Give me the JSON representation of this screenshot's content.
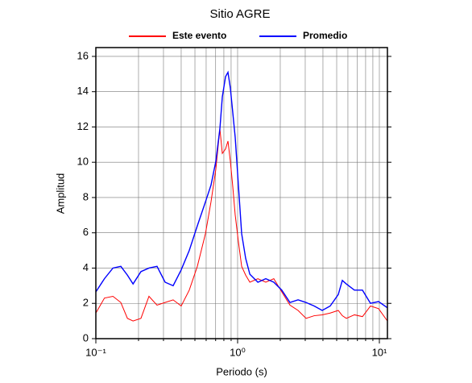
{
  "chart_data": {
    "type": "line",
    "title": "Sitio AGRE",
    "xlabel": "Periodo (s)",
    "ylabel": "Amplitud",
    "xscale": "log",
    "grid": true,
    "legend": "top",
    "xlim": [
      0.1,
      11.4
    ],
    "ylim": [
      0,
      16.5
    ],
    "xticks": [
      {
        "value": 0.1,
        "label": "10⁻¹"
      },
      {
        "value": 1,
        "label": "10⁰"
      },
      {
        "value": 10,
        "label": "10¹"
      }
    ],
    "xminorticks": [
      0.2,
      0.3,
      0.4,
      0.5,
      0.6,
      0.7,
      0.8,
      0.9,
      2,
      3,
      4,
      5,
      6,
      7,
      8,
      9
    ],
    "yticks": [
      0,
      2,
      4,
      6,
      8,
      10,
      12,
      14,
      16
    ],
    "x": [
      0.1,
      0.115,
      0.132,
      0.15,
      0.167,
      0.183,
      0.208,
      0.237,
      0.27,
      0.308,
      0.351,
      0.4,
      0.456,
      0.52,
      0.593,
      0.649,
      0.702,
      0.75,
      0.78,
      0.822,
      0.855,
      0.889,
      0.925,
      0.962,
      1.013,
      1.068,
      1.14,
      1.22,
      1.39,
      1.58,
      1.8,
      2.05,
      2.34,
      2.67,
      3.04,
      3.47,
      3.95,
      4.5,
      5.13,
      5.48,
      5.85,
      6.67,
      7.6,
      8.66,
      9.87,
      11.4
    ],
    "series": [
      {
        "name": "Este evento",
        "color": "#ff0000",
        "width": 1,
        "values": [
          1.45,
          2.3,
          2.4,
          2.05,
          1.15,
          1.0,
          1.15,
          2.4,
          1.9,
          2.05,
          2.2,
          1.85,
          2.75,
          4.1,
          5.95,
          7.75,
          9.6,
          11.9,
          10.5,
          10.75,
          11.2,
          10.05,
          8.6,
          7.0,
          5.5,
          4.1,
          3.6,
          3.2,
          3.4,
          3.2,
          3.4,
          2.65,
          1.9,
          1.6,
          1.15,
          1.3,
          1.35,
          1.45,
          1.6,
          1.3,
          1.15,
          1.35,
          1.25,
          1.85,
          1.7,
          1.0
        ]
      },
      {
        "name": "Promedio",
        "color": "#0000ff",
        "width": 1.4,
        "values": [
          2.65,
          3.4,
          4.0,
          4.1,
          3.6,
          3.1,
          3.8,
          4.0,
          4.1,
          3.2,
          3.0,
          3.9,
          5.0,
          6.4,
          7.75,
          8.7,
          10.05,
          11.9,
          13.7,
          14.85,
          15.1,
          14.2,
          12.8,
          11.4,
          8.7,
          5.95,
          4.55,
          3.65,
          3.2,
          3.4,
          3.2,
          2.75,
          2.05,
          2.2,
          2.05,
          1.85,
          1.6,
          1.85,
          2.5,
          3.3,
          3.1,
          2.75,
          2.75,
          2.0,
          2.1,
          1.75
        ]
      }
    ]
  }
}
